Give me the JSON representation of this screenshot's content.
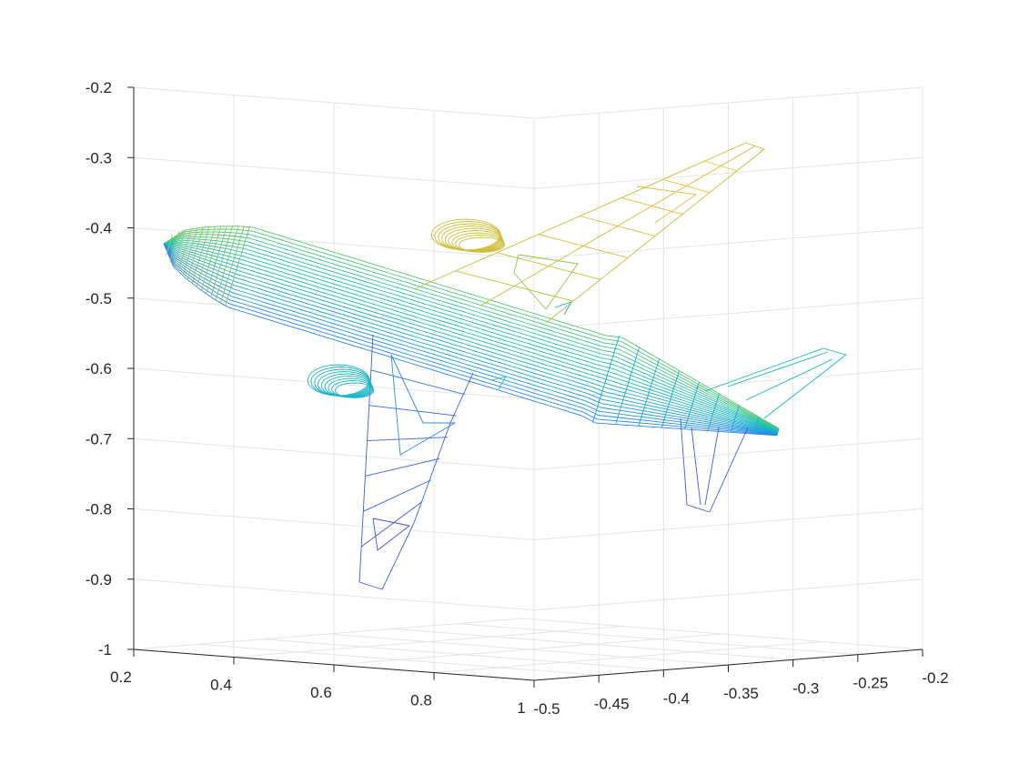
{
  "chart_data": {
    "type": "wireframe-3d",
    "title": "",
    "xlabel": "",
    "ylabel": "",
    "zlabel": "",
    "grid": true,
    "colormap": "parula",
    "axes": {
      "x": {
        "range": [
          0.2,
          1
        ],
        "ticks": [
          0.2,
          0.4,
          0.6,
          0.8,
          1
        ],
        "tick_labels": [
          "0.2",
          "0.4",
          "0.6",
          "0.8",
          "1"
        ]
      },
      "y": {
        "range": [
          -0.5,
          -0.2
        ],
        "ticks": [
          -0.5,
          -0.45,
          -0.4,
          -0.35,
          -0.3,
          -0.25,
          -0.2
        ],
        "tick_labels": [
          "-0.5",
          "-0.45",
          "-0.4",
          "-0.35",
          "-0.3",
          "-0.25",
          "-0.2"
        ]
      },
      "z": {
        "range": [
          -1,
          -0.2
        ],
        "ticks": [
          -1,
          -0.9,
          -0.8,
          -0.7,
          -0.6,
          -0.5,
          -0.4,
          -0.3,
          -0.2
        ],
        "tick_labels": [
          "-1",
          "-0.9",
          "-0.8",
          "-0.7",
          "-0.6",
          "-0.5",
          "-0.4",
          "-0.3",
          "-0.2"
        ]
      }
    },
    "colors": {
      "parula_stops": [
        "#3e26a8",
        "#4354e2",
        "#2f7cf5",
        "#1aa4d8",
        "#1cbfb8",
        "#5bc96b",
        "#b5c235",
        "#f0b83a",
        "#f7e21a"
      ]
    },
    "object": "airplane wireframe mesh"
  }
}
